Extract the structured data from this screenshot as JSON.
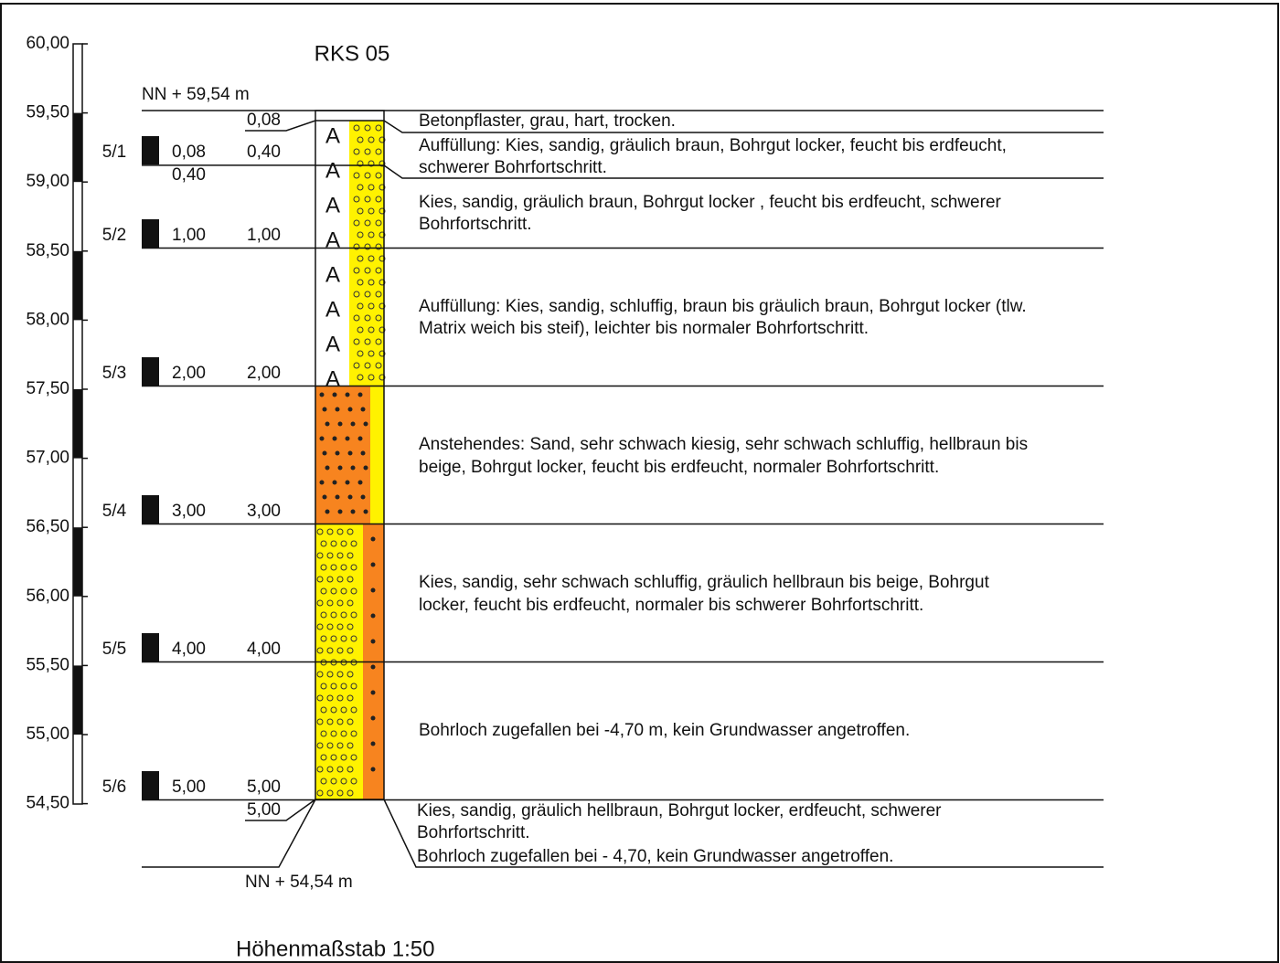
{
  "title": "RKS 05",
  "top_elevation": "NN + 59,54 m",
  "bottom_elevation": "NN + 54,54 m",
  "scale_note": "Höhenmaßstab 1:50",
  "axis_ticks": [
    "60,00",
    "59,50",
    "59,00",
    "58,50",
    "58,00",
    "57,50",
    "57,00",
    "56,50",
    "56,00",
    "55,50",
    "55,00",
    "54,50"
  ],
  "samples": [
    {
      "id": "5/1",
      "from": "0,08",
      "to": "0,40"
    },
    {
      "id": "5/2",
      "to": "1,00"
    },
    {
      "id": "5/3",
      "to": "2,00"
    },
    {
      "id": "5/4",
      "to": "3,00"
    },
    {
      "id": "5/5",
      "to": "4,00"
    },
    {
      "id": "5/6",
      "to": "5,00"
    }
  ],
  "layer_depths": [
    "0,08",
    "0,40",
    "1,00",
    "2,00",
    "3,00",
    "4,00",
    "5,00",
    "5,00"
  ],
  "descriptions": [
    [
      "Betonpflaster, grau, hart, trocken."
    ],
    [
      "Auffüllung: Kies, sandig, gräulich braun, Bohrgut locker, feucht bis erdfeucht,",
      "schwerer Bohrfortschritt."
    ],
    [
      "Kies, sandig, gräulich braun, Bohrgut locker , feucht bis erdfeucht, schwerer",
      "Bohrfortschritt."
    ],
    [
      "Auffüllung: Kies, sandig, schluffig, braun bis gräulich braun, Bohrgut locker (tlw.",
      "Matrix weich bis steif), leichter bis normaler Bohrfortschritt."
    ],
    [
      "Anstehendes: Sand, sehr schwach kiesig, sehr schwach schluffig, hellbraun bis",
      "beige, Bohrgut locker, feucht bis erdfeucht, normaler Bohrfortschritt."
    ],
    [
      "Kies, sandig, sehr schwach schluffig, gräulich hellbraun bis beige, Bohrgut",
      "locker, feucht bis erdfeucht, normaler bis schwerer Bohrfortschritt."
    ],
    [
      "Bohrloch zugefallen bei -4,70 m, kein Grundwasser angetroffen."
    ],
    [
      "Kies, sandig, gräulich hellbraun, Bohrgut locker, erdfeucht, schwerer",
      "Bohrfortschritt.",
      "Bohrloch zugefallen bei - 4,70, kein Grundwasser angetroffen."
    ]
  ]
}
